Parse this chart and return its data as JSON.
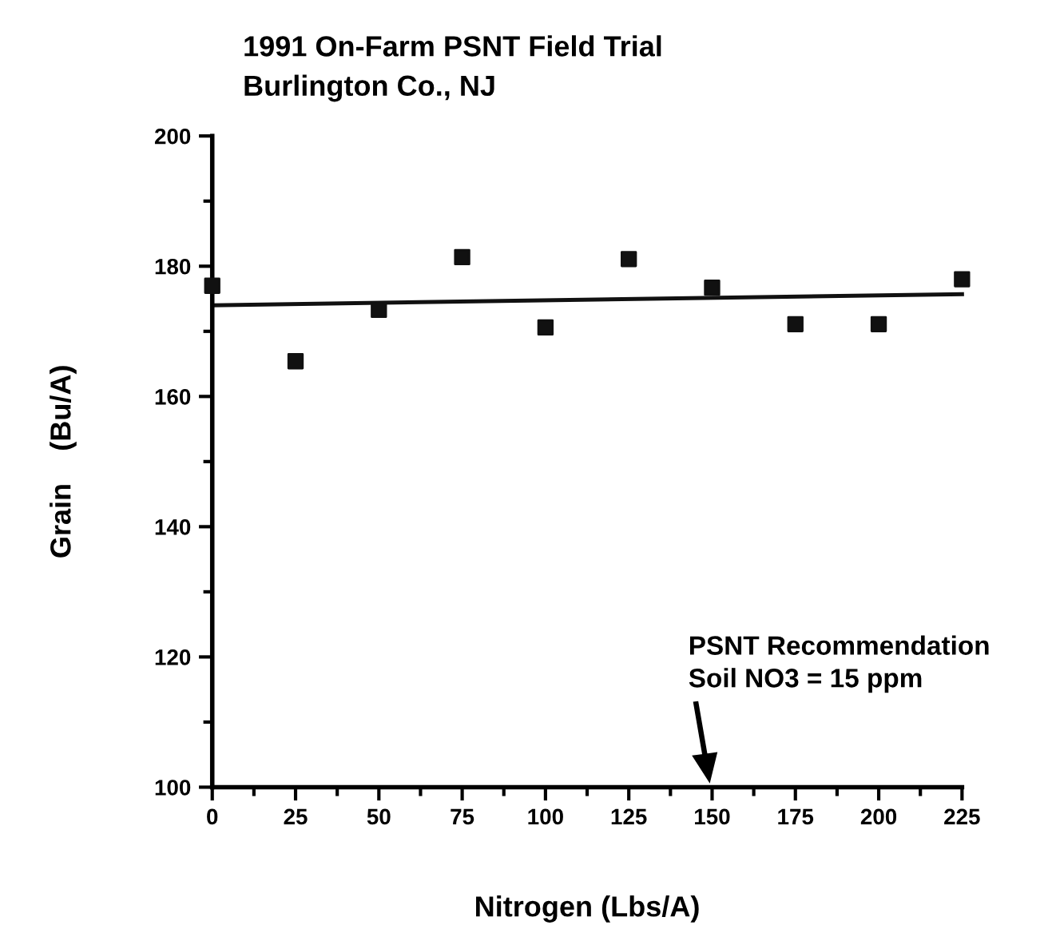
{
  "chart_data": {
    "type": "scatter",
    "title": "1991 On-Farm PSNT Field Trial",
    "subtitle": "Burlington Co., NJ",
    "xlabel": "Nitrogen (Lbs/A)",
    "ylabel": "Grain    (Bu/A)",
    "x": [
      0,
      25,
      50,
      75,
      100,
      125,
      150,
      175,
      200,
      225
    ],
    "series": [
      {
        "color": "#111111",
        "marker": "square",
        "values": [
          177,
          165.4,
          173.3,
          181.4,
          170.6,
          181.1,
          176.7,
          171.1,
          171.1,
          178
        ]
      },
      {
        "type": "line",
        "color": "#111111",
        "marker": "none",
        "line_style": "solid",
        "x": [
          0,
          225
        ],
        "values": [
          174,
          175.7
        ]
      }
    ],
    "xlim": [
      0,
      225
    ],
    "ylim": [
      100,
      200
    ],
    "xticks": [
      0,
      25,
      50,
      75,
      100,
      125,
      150,
      175,
      200,
      225
    ],
    "yticks": [
      100,
      120,
      140,
      160,
      180,
      200
    ],
    "grid": false,
    "legend": false,
    "annotations": [
      "PSNT Recommendation\nSoil NO3 = 15 ppm"
    ]
  }
}
